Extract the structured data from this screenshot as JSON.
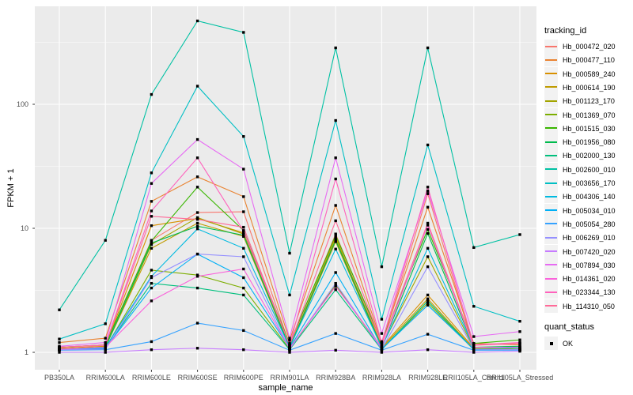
{
  "chart_data": {
    "type": "line",
    "title": "",
    "xlabel": "sample_name",
    "ylabel": "FPKM + 1",
    "y_scale": "log10",
    "ylim": [
      0.72,
      600
    ],
    "y_ticks": [
      1,
      10,
      100
    ],
    "y_tick_labels": [
      "1",
      "10",
      "100"
    ],
    "y_minor_ticks": [
      3.162,
      31.62,
      316.2
    ],
    "grid": true,
    "legend_position": "right",
    "point_shape": "black-square",
    "categories": [
      "PB350LA",
      "RRIM600LA",
      "RRIM600LE",
      "RRIM600SE",
      "RRIM600PE",
      "RRIM901LA",
      "RRIM928BA",
      "RRIM928LA",
      "RRIM928LE",
      "RRII105LA_Control",
      "RRII105LA_Stressed"
    ],
    "series": [
      {
        "name": "Hb_000472_020",
        "color": "#F8766D",
        "values": [
          1.1,
          1.15,
          8.0,
          13.4,
          13.6,
          1.15,
          9.0,
          1.15,
          19.0,
          1.1,
          1.1
        ]
      },
      {
        "name": "Hb_000477_110",
        "color": "#EA8331",
        "values": [
          1.2,
          1.3,
          16.5,
          26.0,
          18.0,
          1.25,
          15.3,
          1.2,
          14.8,
          1.18,
          1.15
        ]
      },
      {
        "name": "Hb_000589_240",
        "color": "#D89000",
        "values": [
          1.08,
          1.12,
          10.5,
          12.0,
          9.2,
          1.1,
          8.5,
          1.1,
          2.9,
          1.08,
          1.06
        ]
      },
      {
        "name": "Hb_000614_190",
        "color": "#C09B00",
        "values": [
          1.06,
          1.1,
          6.9,
          11.0,
          8.6,
          1.08,
          7.8,
          1.08,
          2.7,
          1.06,
          1.05
        ]
      },
      {
        "name": "Hb_001123_170",
        "color": "#A3A500",
        "values": [
          1.06,
          1.1,
          7.4,
          12.2,
          9.0,
          1.1,
          8.2,
          1.12,
          5.9,
          1.08,
          1.06
        ]
      },
      {
        "name": "Hb_001369_070",
        "color": "#7CAE00",
        "values": [
          1.05,
          1.08,
          4.6,
          4.2,
          3.3,
          1.06,
          3.5,
          1.06,
          2.5,
          1.05,
          1.05
        ]
      },
      {
        "name": "Hb_001515_030",
        "color": "#39B600",
        "values": [
          1.1,
          1.15,
          7.9,
          21.5,
          9.6,
          1.18,
          8.8,
          1.22,
          9.8,
          1.18,
          1.26
        ]
      },
      {
        "name": "Hb_001956_080",
        "color": "#00BB4E",
        "values": [
          1.06,
          1.1,
          7.6,
          10.4,
          8.8,
          1.1,
          8.0,
          1.1,
          9.1,
          1.1,
          1.12
        ]
      },
      {
        "name": "Hb_002000_130",
        "color": "#00BF7D",
        "values": [
          1.05,
          1.08,
          3.6,
          3.3,
          2.9,
          1.05,
          3.2,
          1.05,
          2.6,
          1.05,
          1.05
        ]
      },
      {
        "name": "Hb_002600_010",
        "color": "#00C1A3",
        "values": [
          2.2,
          8.0,
          120,
          470,
          380,
          6.3,
          285,
          4.9,
          285,
          7.0,
          8.9
        ]
      },
      {
        "name": "Hb_003656_170",
        "color": "#00BFC4",
        "values": [
          1.28,
          1.7,
          28,
          140,
          55,
          2.9,
          74,
          1.85,
          47,
          2.35,
          1.78
        ]
      },
      {
        "name": "Hb_004306_140",
        "color": "#00BAE0",
        "values": [
          1.06,
          1.1,
          4.1,
          9.9,
          6.9,
          1.1,
          6.8,
          1.1,
          6.9,
          1.1,
          1.08
        ]
      },
      {
        "name": "Hb_005034_010",
        "color": "#00B0F6",
        "values": [
          1.05,
          1.08,
          3.3,
          6.2,
          4.0,
          1.08,
          4.4,
          1.06,
          2.4,
          1.06,
          1.05
        ]
      },
      {
        "name": "Hb_005054_280",
        "color": "#35A2FF",
        "values": [
          1.04,
          1.05,
          1.22,
          1.72,
          1.5,
          1.04,
          1.42,
          1.04,
          1.4,
          1.04,
          1.04
        ]
      },
      {
        "name": "Hb_006269_010",
        "color": "#9590FF",
        "values": [
          1.05,
          1.06,
          4.0,
          6.2,
          5.9,
          1.06,
          3.6,
          1.06,
          4.9,
          1.06,
          1.05
        ]
      },
      {
        "name": "Hb_007420_020",
        "color": "#C77CFF",
        "values": [
          1.0,
          1.0,
          1.05,
          1.08,
          1.05,
          1.0,
          1.04,
          1.0,
          1.05,
          1.0,
          1.02
        ]
      },
      {
        "name": "Hb_007894_030",
        "color": "#E76BF3",
        "values": [
          1.12,
          1.2,
          23,
          52,
          30,
          1.3,
          37,
          1.42,
          20,
          1.34,
          1.47
        ]
      },
      {
        "name": "Hb_014361_020",
        "color": "#FA62DB",
        "values": [
          1.06,
          1.1,
          2.6,
          4.1,
          4.7,
          1.08,
          3.4,
          1.1,
          10.6,
          1.1,
          1.1
        ]
      },
      {
        "name": "Hb_023344_130",
        "color": "#FF62BC",
        "values": [
          1.1,
          1.15,
          13.8,
          37,
          9.5,
          1.15,
          25,
          1.2,
          21.5,
          1.15,
          1.2
        ]
      },
      {
        "name": "Hb_114310_050",
        "color": "#FF6A98",
        "values": [
          1.1,
          1.14,
          12.5,
          11.8,
          10.2,
          1.14,
          11.5,
          1.18,
          11.0,
          1.14,
          1.18
        ]
      }
    ]
  },
  "legend": {
    "tracking_title": "tracking_id",
    "quant_title": "quant_status",
    "quant_entries": [
      {
        "label": "OK",
        "marker": "black-square"
      }
    ]
  },
  "colors": {
    "panel_bg": "#EBEBEB",
    "grid_major": "#FFFFFF",
    "grid_minor": "#FFFFFF",
    "tick_text": "#4D4D4D",
    "tick_mark": "#333333",
    "legend_key_bg": "#F2F2F2",
    "marker": "#000000"
  }
}
